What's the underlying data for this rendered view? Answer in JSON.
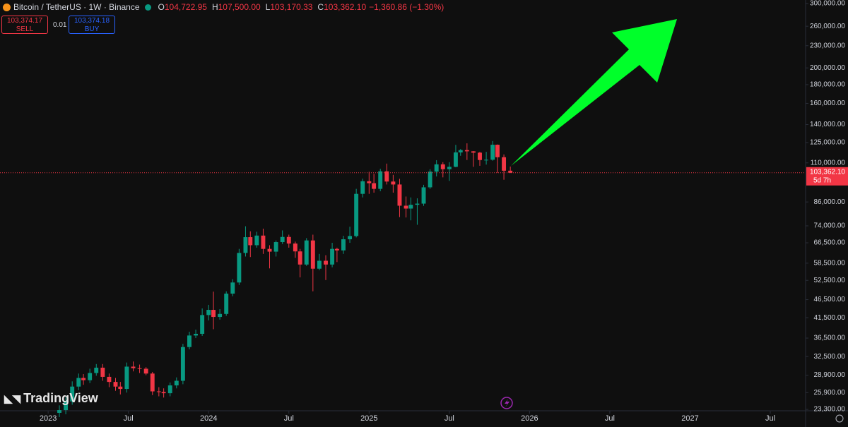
{
  "header": {
    "symbol": "Bitcoin / TetherUS · 1W · Binance",
    "ohlc_keys": [
      "O",
      "H",
      "L",
      "C"
    ],
    "change": "−1,360.86 (−1.30%)",
    "sell_price": "103,374.17",
    "sell_label": "SELL",
    "quantity": "0.01",
    "buy_price": "103,374.18",
    "buy_label": "BUY",
    "brand": "TradingView",
    "countdown": "5d 7h"
  },
  "chart_data": {
    "type": "candlestick",
    "log_scale": true,
    "grid": false,
    "up_color": "#089981",
    "down_color": "#f23645",
    "last_labels": [
      "104,722.95",
      "107,500.00",
      "103,170.33",
      "103,362.10"
    ],
    "x": [
      2023.07,
      2023.11,
      2023.15,
      2023.19,
      2023.22,
      2023.26,
      2023.3,
      2023.34,
      2023.38,
      2023.42,
      2023.45,
      2023.49,
      2023.53,
      2023.57,
      2023.61,
      2023.65,
      2023.69,
      2023.72,
      2023.76,
      2023.8,
      2023.84,
      2023.88,
      2023.92,
      2023.96,
      2024.0,
      2024.03,
      2024.07,
      2024.11,
      2024.15,
      2024.19,
      2024.23,
      2024.26,
      2024.3,
      2024.34,
      2024.38,
      2024.42,
      2024.46,
      2024.5,
      2024.54,
      2024.57,
      2024.61,
      2024.65,
      2024.69,
      2024.73,
      2024.77,
      2024.8,
      2024.84,
      2024.88,
      2024.92,
      2024.96,
      2025.0,
      2025.03,
      2025.07,
      2025.11,
      2025.15,
      2025.19,
      2025.23,
      2025.26,
      2025.3,
      2025.34,
      2025.38,
      2025.42,
      2025.46,
      2025.5,
      2025.54,
      2025.57,
      2025.61,
      2025.65,
      2025.69,
      2025.73,
      2025.77,
      2025.8,
      2025.84,
      2025.88
    ],
    "open": [
      22800,
      23200,
      24500,
      26900,
      28400,
      28000,
      29300,
      30300,
      28600,
      27700,
      26900,
      26500,
      30500,
      30200,
      30100,
      29200,
      26100,
      26000,
      25800,
      27100,
      27900,
      34500,
      37100,
      37500,
      42200,
      43600,
      41700,
      42500,
      48300,
      51800,
      62400,
      68900,
      65500,
      69600,
      64000,
      62900,
      66800,
      69000,
      66200,
      63000,
      58000,
      67500,
      56500,
      59400,
      58000,
      64000,
      63400,
      68000,
      69400,
      90500,
      98000,
      96800,
      93400,
      104300,
      97800,
      96000,
      84000,
      82500,
      84500,
      85100,
      94300,
      104100,
      109000,
      105700,
      107300,
      117500,
      119200,
      118300,
      117300,
      112000,
      112200,
      123300,
      114000,
      104722.95
    ],
    "high": [
      23900,
      25200,
      27800,
      29200,
      29100,
      30100,
      31000,
      31000,
      29200,
      28400,
      27700,
      31300,
      31500,
      30900,
      30400,
      29500,
      26800,
      26600,
      27600,
      28500,
      35200,
      38000,
      38500,
      44000,
      45000,
      48900,
      43800,
      49000,
      52900,
      64000,
      73800,
      71500,
      71300,
      72700,
      65500,
      67500,
      71900,
      70000,
      67000,
      64000,
      68500,
      70000,
      62000,
      61500,
      66500,
      64500,
      69500,
      73600,
      93400,
      99600,
      104000,
      102700,
      106000,
      109500,
      102000,
      99500,
      89000,
      88500,
      88000,
      95800,
      105700,
      111900,
      110500,
      110500,
      123200,
      120000,
      124400,
      118500,
      117900,
      117900,
      126200,
      123500,
      116000,
      107500
    ],
    "low": [
      22200,
      22600,
      24000,
      26300,
      27200,
      27500,
      28800,
      27900,
      26800,
      26200,
      25600,
      25900,
      29600,
      29300,
      28900,
      25500,
      25300,
      25100,
      25300,
      26600,
      27300,
      34000,
      36500,
      37000,
      40800,
      38600,
      41000,
      42000,
      47500,
      51000,
      61000,
      60800,
      64500,
      62000,
      56600,
      61000,
      66000,
      64500,
      60500,
      53500,
      57500,
      49000,
      56000,
      52600,
      57000,
      58900,
      62000,
      66500,
      68800,
      88500,
      90500,
      91200,
      92000,
      96000,
      91200,
      78200,
      78000,
      76600,
      74500,
      83900,
      93400,
      101000,
      100400,
      98200,
      107000,
      115000,
      112000,
      107300,
      108000,
      108800,
      111500,
      103300,
      98900,
      103170.33
    ],
    "close": [
      23200,
      24500,
      26900,
      28400,
      28000,
      29300,
      30300,
      28600,
      27700,
      26900,
      26500,
      30500,
      30200,
      30100,
      29200,
      26100,
      26000,
      25800,
      27100,
      27900,
      34500,
      37100,
      37500,
      42200,
      43600,
      41700,
      42500,
      48300,
      51800,
      62400,
      68900,
      65500,
      69600,
      64000,
      62900,
      66800,
      69000,
      66200,
      63000,
      58000,
      67500,
      56500,
      59400,
      58000,
      64000,
      63400,
      68000,
      69400,
      90500,
      98000,
      96800,
      93400,
      104300,
      97800,
      96000,
      84000,
      82500,
      84500,
      85100,
      94300,
      104100,
      109000,
      105700,
      107300,
      117500,
      119200,
      118300,
      117300,
      112000,
      112200,
      123300,
      114000,
      104700,
      103362.1
    ],
    "xlim": [
      2022.7,
      2027.72
    ],
    "xticks": [
      2023,
      {
        "value": 2023.5,
        "label": "Jul"
      },
      2024,
      {
        "value": 2024.5,
        "label": "Jul"
      },
      2025,
      {
        "value": 2025.5,
        "label": "Jul"
      },
      2026,
      {
        "value": 2026.5,
        "label": "Jul"
      },
      2027,
      {
        "value": 2027.5,
        "label": "Jul"
      }
    ],
    "ylim": [
      23100,
      306700
    ],
    "yticks": [
      {
        "value": 300000,
        "label": "300,000.00"
      },
      {
        "value": 260000,
        "label": "260,000.00"
      },
      {
        "value": 230000,
        "label": "230,000.00"
      },
      {
        "value": 200000,
        "label": "200,000.00"
      },
      {
        "value": 180000,
        "label": "180,000.00"
      },
      {
        "value": 160000,
        "label": "160,000.00"
      },
      {
        "value": 140000,
        "label": "140,000.00"
      },
      {
        "value": 125000,
        "label": "125,000.00"
      },
      {
        "value": 110000,
        "label": "110,000.00"
      },
      {
        "value": 86000,
        "label": "86,000.00"
      },
      {
        "value": 74000,
        "label": "74,000.00"
      },
      {
        "value": 66500,
        "label": "66,500.00"
      },
      {
        "value": 58500,
        "label": "58,500.00"
      },
      {
        "value": 52500,
        "label": "52,500.00"
      },
      {
        "value": 46500,
        "label": "46,500.00"
      },
      {
        "value": 41500,
        "label": "41,500.00"
      },
      {
        "value": 36500,
        "label": "36,500.00"
      },
      {
        "value": 32500,
        "label": "32,500.00"
      },
      {
        "value": 28900,
        "label": "28,900.00"
      },
      {
        "value": 25900,
        "label": "25,900.00"
      },
      {
        "value": 23300,
        "label": "23,300.00"
      }
    ]
  }
}
